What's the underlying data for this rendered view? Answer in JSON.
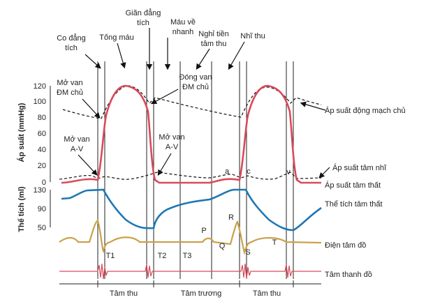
{
  "phases": [
    [
      "Co đẳng",
      "tích"
    ],
    [
      "Tống máu"
    ],
    [
      "Giãn đẳng",
      "tích"
    ],
    [
      "Máu về",
      "nhanh"
    ],
    [
      "Nghỉ tiền",
      "tâm thu"
    ],
    [
      "Nhĩ thu"
    ]
  ],
  "axis_titles": {
    "pressure": "Áp suất (mmHg)",
    "volume": "Thể tích (ml)"
  },
  "pressure_ticks": [
    "120",
    "100",
    "80",
    "60",
    "40",
    "20",
    "0"
  ],
  "volume_ticks": [
    "130",
    "90",
    "50"
  ],
  "annotations": [
    [
      "Mở van",
      "ĐM chủ"
    ],
    [
      "Đóng van",
      "ĐM chủ"
    ],
    [
      "Mở van",
      "A-V"
    ],
    [
      "Mở van",
      "A-V"
    ]
  ],
  "curve_labels": [
    "Áp suất động mạch chủ",
    "Áp suất tâm nhĩ",
    "Áp suất tâm thất",
    "Thể tích tâm thất",
    "Điện tâm đồ",
    "Tâm thanh đồ"
  ],
  "wave_labels": [
    "a",
    "c",
    "v",
    "P",
    "R",
    "Q",
    "S",
    "T",
    "T1",
    "T2",
    "T3"
  ],
  "cycle_labels": [
    "Tâm thu",
    "Tâm trương",
    "Tâm thu"
  ]
}
